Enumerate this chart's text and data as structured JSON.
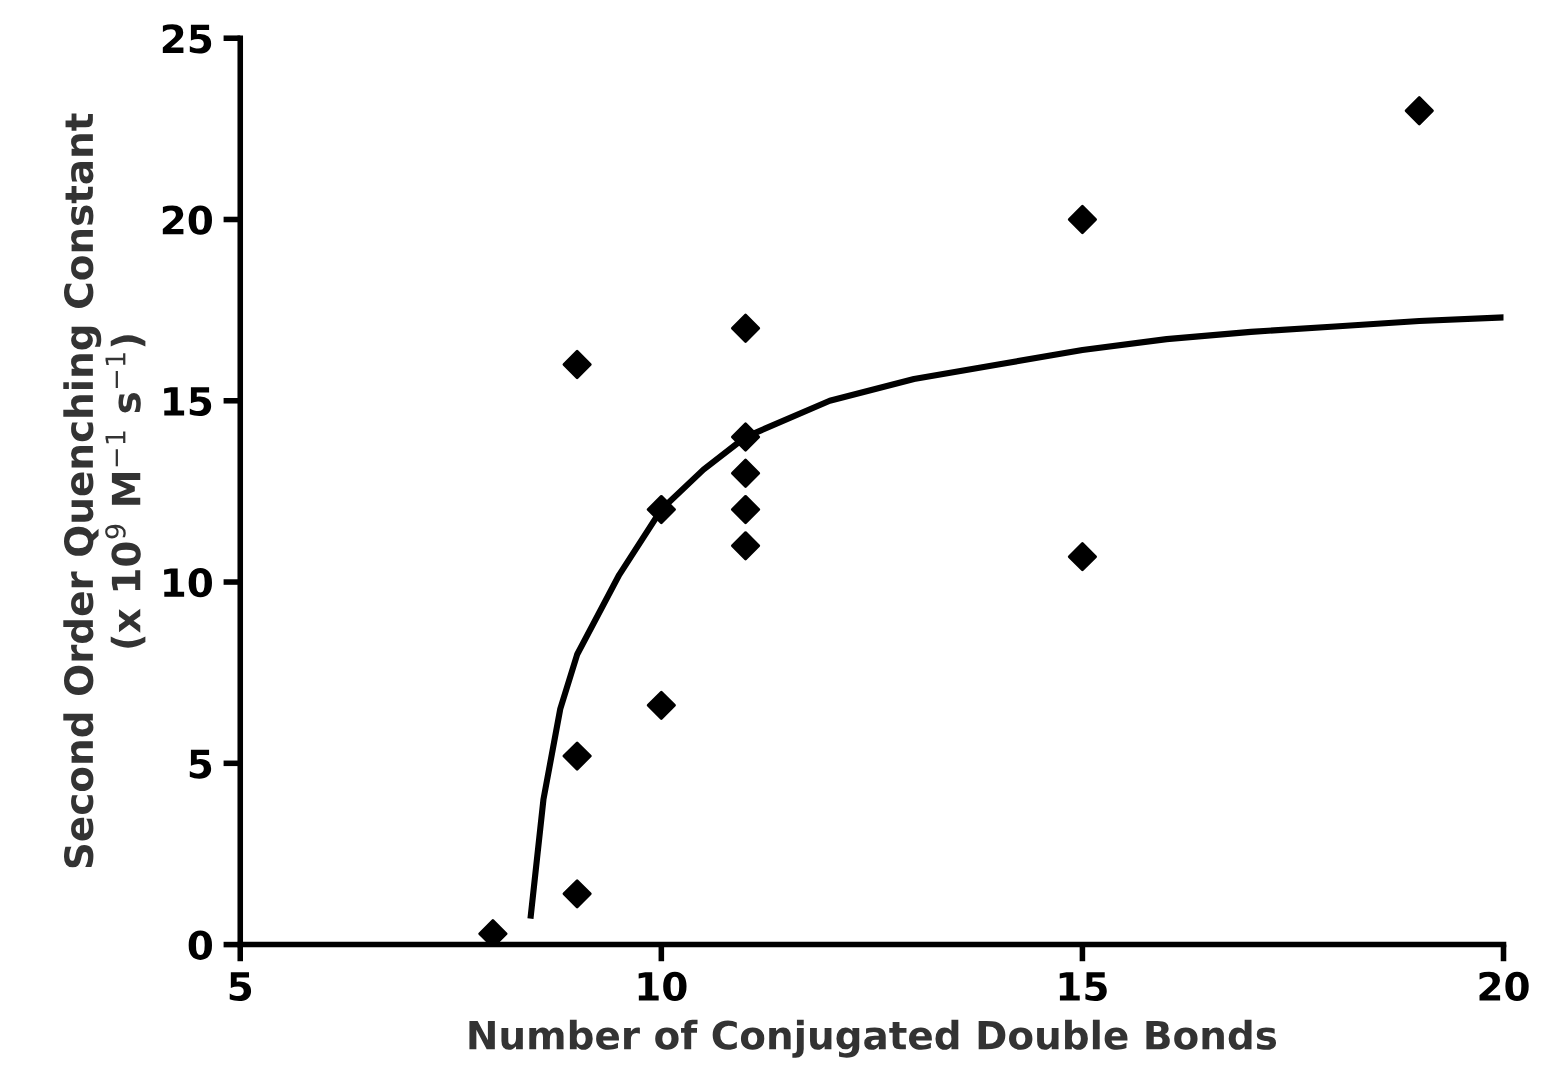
{
  "chart_data": {
    "type": "scatter",
    "xlabel": "Number of Conjugated Double Bonds",
    "ylabel": "Second Order Quenching Constant\n(x 10$^{9}$ M$^{−1}$ s$^{−1}$)",
    "xlim": [
      5,
      20
    ],
    "xticks": [
      5,
      10,
      15,
      20
    ],
    "ylim": [
      0,
      25
    ],
    "yticks": [
      0,
      5,
      10,
      15,
      20,
      25
    ],
    "grid": false,
    "legend": false,
    "marker": "diamond",
    "series": [
      {
        "color": "#000000",
        "x": [
          8,
          9,
          9,
          9,
          10,
          10,
          11,
          11,
          11,
          11,
          11,
          15,
          15,
          19
        ],
        "values": [
          0.3,
          16,
          5.2,
          1.4,
          12,
          6.6,
          17,
          14,
          13,
          12,
          11,
          20,
          10.7,
          23
        ]
      },
      {
        "type": "line",
        "color": "#000000",
        "marker": "none",
        "line_style": "solid",
        "x": [
          8.45,
          8.6,
          8.8,
          9,
          9.5,
          10,
          10.5,
          11,
          12,
          13,
          14,
          15,
          16,
          17,
          18,
          19,
          20
        ],
        "values": [
          0.8,
          4,
          6.5,
          8,
          10.2,
          12,
          13.1,
          14,
          15,
          15.6,
          16,
          16.4,
          16.7,
          16.9,
          17.05,
          17.2,
          17.3
        ]
      }
    ]
  }
}
